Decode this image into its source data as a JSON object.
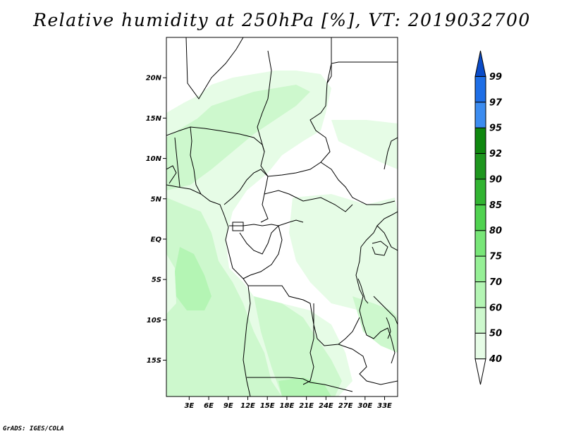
{
  "title": "Relative humidity at 250hPa [%], VT: 2019032700",
  "credit": "GrADS: IGES/COLA",
  "map": {
    "lon_range": [
      -0.5,
      35
    ],
    "lat_range": [
      -19.5,
      25
    ],
    "lat_ticks": [
      {
        "value": 20,
        "label": "20N"
      },
      {
        "value": 15,
        "label": "15N"
      },
      {
        "value": 10,
        "label": "10N"
      },
      {
        "value": 5,
        "label": "5N"
      },
      {
        "value": 0,
        "label": "EQ"
      },
      {
        "value": -5,
        "label": "5S"
      },
      {
        "value": -10,
        "label": "10S"
      },
      {
        "value": -15,
        "label": "15S"
      }
    ],
    "lon_ticks": [
      {
        "value": 3,
        "label": "3E"
      },
      {
        "value": 6,
        "label": "6E"
      },
      {
        "value": 9,
        "label": "9E"
      },
      {
        "value": 12,
        "label": "12E"
      },
      {
        "value": 15,
        "label": "15E"
      },
      {
        "value": 18,
        "label": "18E"
      },
      {
        "value": 21,
        "label": "21E"
      },
      {
        "value": 24,
        "label": "24E"
      },
      {
        "value": 27,
        "label": "27E"
      },
      {
        "value": 30,
        "label": "30E"
      },
      {
        "value": 33,
        "label": "33E"
      }
    ]
  },
  "colorbar": {
    "levels": [
      "40",
      "50",
      "60",
      "70",
      "75",
      "80",
      "85",
      "90",
      "92",
      "95",
      "97",
      "99"
    ],
    "colors": [
      "#ffffff",
      "#e6fce6",
      "#cdf8cd",
      "#b4f5b4",
      "#96f096",
      "#78e678",
      "#50d250",
      "#32b432",
      "#1e961e",
      "#0f870f",
      "#3c8cf0",
      "#1e6ee6",
      "#0a4bc8"
    ]
  },
  "colors": {
    "humid_light": "#e6fce6",
    "humid_mid": "#cdf8cd",
    "humid_strong": "#b4f5b4",
    "border": "#000000"
  }
}
